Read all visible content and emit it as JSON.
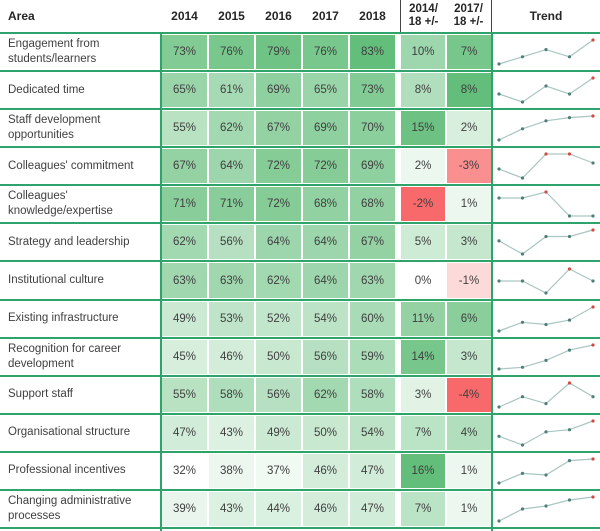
{
  "table": {
    "headers": {
      "area": "Area",
      "years": [
        "2014",
        "2015",
        "2016",
        "2017",
        "2018"
      ],
      "delta_14_18_line1": "2014/",
      "delta_14_18_line2": "18 +/-",
      "delta_17_18_line1": "2017/",
      "delta_17_18_line2": "18 +/-",
      "trend": "Trend"
    },
    "rows": [
      {
        "area": "Engagement from students/learners",
        "values": [
          73,
          76,
          79,
          76,
          83
        ],
        "delta_14_18": 10,
        "delta_17_18": 7
      },
      {
        "area": "Dedicated time",
        "values": [
          65,
          61,
          69,
          65,
          73
        ],
        "delta_14_18": 8,
        "delta_17_18": 8
      },
      {
        "area": "Staff development opportunities",
        "values": [
          55,
          62,
          67,
          69,
          70
        ],
        "delta_14_18": 15,
        "delta_17_18": 2
      },
      {
        "area": "Colleagues' commitment",
        "values": [
          67,
          64,
          72,
          72,
          69
        ],
        "delta_14_18": 2,
        "delta_17_18": -3
      },
      {
        "area": "Colleagues' knowledge/expertise",
        "values": [
          71,
          71,
          72,
          68,
          68
        ],
        "delta_14_18": -2,
        "delta_17_18": 1
      },
      {
        "area": "Strategy and leadership",
        "values": [
          62,
          56,
          64,
          64,
          67
        ],
        "delta_14_18": 5,
        "delta_17_18": 3
      },
      {
        "area": "Institutional culture",
        "values": [
          63,
          63,
          62,
          64,
          63
        ],
        "delta_14_18": 0,
        "delta_17_18": -1
      },
      {
        "area": "Existing infrastructure",
        "values": [
          49,
          53,
          52,
          54,
          60
        ],
        "delta_14_18": 11,
        "delta_17_18": 6
      },
      {
        "area": "Recognition for career development",
        "values": [
          45,
          46,
          50,
          56,
          59
        ],
        "delta_14_18": 14,
        "delta_17_18": 3
      },
      {
        "area": "Support staff",
        "values": [
          55,
          58,
          56,
          62,
          58
        ],
        "delta_14_18": 3,
        "delta_17_18": -4
      },
      {
        "area": "Organisational structure",
        "values": [
          47,
          43,
          49,
          50,
          54
        ],
        "delta_14_18": 7,
        "delta_17_18": 4
      },
      {
        "area": "Professional incentives",
        "values": [
          32,
          38,
          37,
          46,
          47
        ],
        "delta_14_18": 16,
        "delta_17_18": 1
      },
      {
        "area": "Changing administrative processes",
        "values": [
          39,
          43,
          44,
          46,
          47
        ],
        "delta_14_18": 7,
        "delta_17_18": 1
      }
    ]
  },
  "chart_data": {
    "type": "table",
    "title": "Survey results by area, 2014-2018, with year-on-year change and trend sparklines",
    "columns": [
      "Area",
      "2014",
      "2015",
      "2016",
      "2017",
      "2018",
      "2014/18 +/-",
      "2017/18 +/-",
      "Trend"
    ],
    "sparkline_note": "Each Trend sparkline plots the five year values for its row, scaled to the row min/max; maximum point(s) marked red",
    "series": [
      {
        "name": "Engagement from students/learners",
        "values": [
          73,
          76,
          79,
          76,
          83
        ],
        "delta_2014_18": 10,
        "delta_2017_18": 7
      },
      {
        "name": "Dedicated time",
        "values": [
          65,
          61,
          69,
          65,
          73
        ],
        "delta_2014_18": 8,
        "delta_2017_18": 8
      },
      {
        "name": "Staff development opportunities",
        "values": [
          55,
          62,
          67,
          69,
          70
        ],
        "delta_2014_18": 15,
        "delta_2017_18": 2
      },
      {
        "name": "Colleagues' commitment",
        "values": [
          67,
          64,
          72,
          72,
          69
        ],
        "delta_2014_18": 2,
        "delta_2017_18": -3
      },
      {
        "name": "Colleagues' knowledge/expertise",
        "values": [
          71,
          71,
          72,
          68,
          68
        ],
        "delta_2014_18": -2,
        "delta_2017_18": 1
      },
      {
        "name": "Strategy and leadership",
        "values": [
          62,
          56,
          64,
          64,
          67
        ],
        "delta_2014_18": 5,
        "delta_2017_18": 3
      },
      {
        "name": "Institutional culture",
        "values": [
          63,
          63,
          62,
          64,
          63
        ],
        "delta_2014_18": 0,
        "delta_2017_18": -1
      },
      {
        "name": "Existing infrastructure",
        "values": [
          49,
          53,
          52,
          54,
          60
        ],
        "delta_2014_18": 11,
        "delta_2017_18": 6
      },
      {
        "name": "Recognition for career development",
        "values": [
          45,
          46,
          50,
          56,
          59
        ],
        "delta_2014_18": 14,
        "delta_2017_18": 3
      },
      {
        "name": "Support staff",
        "values": [
          55,
          58,
          56,
          62,
          58
        ],
        "delta_2014_18": 3,
        "delta_2017_18": -4
      },
      {
        "name": "Organisational structure",
        "values": [
          47,
          43,
          49,
          50,
          54
        ],
        "delta_2014_18": 7,
        "delta_2017_18": 4
      },
      {
        "name": "Professional incentives",
        "values": [
          32,
          38,
          37,
          46,
          47
        ],
        "delta_2014_18": 16,
        "delta_2017_18": 1
      },
      {
        "name": "Changing administrative processes",
        "values": [
          39,
          43,
          44,
          46,
          47
        ],
        "delta_2014_18": 7,
        "delta_2017_18": 1
      }
    ],
    "x": [
      "2014",
      "2015",
      "2016",
      "2017",
      "2018"
    ]
  },
  "colors": {
    "scale_green_max": "#63BE7B",
    "scale_red_max": "#F8696B",
    "grid_line": "#2EA36B",
    "spark_line": "#A9C6C1",
    "spark_dot": "#4E7F79",
    "spark_dot_max": "#D14B42",
    "header_text": "#262626",
    "body_text": "#3F3F3F"
  },
  "scales": {
    "years": {
      "min": 32,
      "max": 83
    },
    "delta_14_18": {
      "neg_min": -2,
      "pos_max": 16
    },
    "delta_17_18": {
      "neg_min": -4,
      "pos_max": 8
    }
  }
}
